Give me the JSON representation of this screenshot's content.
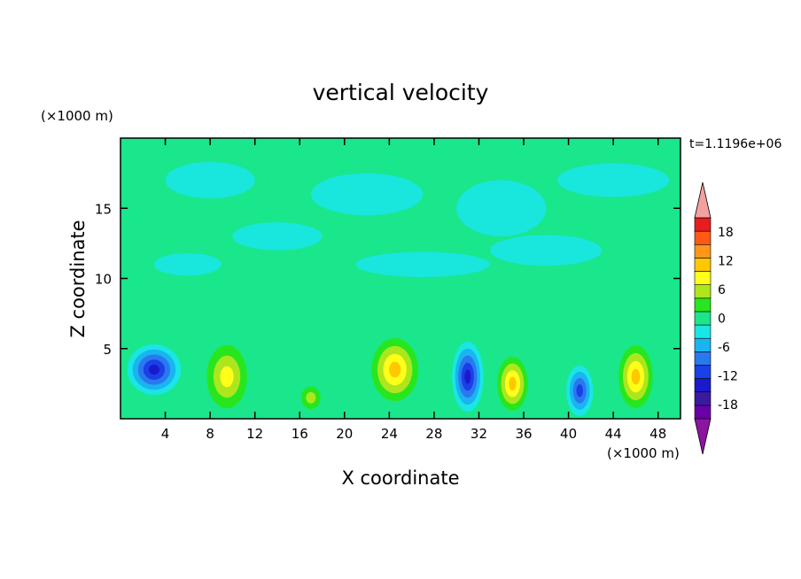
{
  "chart_data": {
    "type": "heatmap",
    "title": "vertical velocity",
    "xlabel": "X coordinate",
    "ylabel": "Z coordinate",
    "x_unit": "(×1000 m)",
    "y_unit": "(×1000 m)",
    "time_label": "t=1.1196e+06",
    "xlim": [
      0,
      50
    ],
    "ylim": [
      0,
      20
    ],
    "x_ticks": [
      4,
      8,
      12,
      16,
      20,
      24,
      28,
      32,
      36,
      40,
      44,
      48
    ],
    "y_ticks": [
      5,
      10,
      15
    ],
    "colorbar": {
      "levels": [
        -21,
        -18,
        -15,
        -12,
        -9,
        -6,
        -3,
        0,
        3,
        6,
        9,
        12,
        15,
        18,
        21
      ],
      "tick_labels": [
        "18",
        "12",
        "6",
        "0",
        "-6",
        "-12",
        "-18"
      ],
      "colors": [
        "#6a00a8",
        "#3c1aa0",
        "#1a1acc",
        "#1a40e6",
        "#2a78f0",
        "#1ab4f0",
        "#1ae6e6",
        "#1ae68c",
        "#28e61e",
        "#aee61e",
        "#ffff1a",
        "#ffc800",
        "#ff961a",
        "#ff5a14",
        "#e61e1e"
      ],
      "extend_low_color": "#8c14a0",
      "extend_high_color": "#f4a0a0"
    },
    "cells": [
      {
        "x": 3.0,
        "z": 3.5,
        "w": -13,
        "rx": 2.4,
        "rz": 1.8
      },
      {
        "x": 9.5,
        "z": 3.0,
        "w": 9,
        "rx": 2.4,
        "rz": 3.0
      },
      {
        "x": 17.0,
        "z": 1.5,
        "w": 6,
        "rx": 1.3,
        "rz": 1.2
      },
      {
        "x": 24.5,
        "z": 3.5,
        "w": 12,
        "rx": 2.6,
        "rz": 2.8
      },
      {
        "x": 31.0,
        "z": 3.0,
        "w": -12,
        "rx": 1.4,
        "rz": 2.5
      },
      {
        "x": 35.0,
        "z": 2.5,
        "w": 12,
        "rx": 1.7,
        "rz": 2.4
      },
      {
        "x": 41.0,
        "z": 2.0,
        "w": -11,
        "rx": 1.2,
        "rz": 1.8
      },
      {
        "x": 46.0,
        "z": 3.0,
        "w": 12,
        "rx": 1.9,
        "rz": 2.8
      }
    ]
  }
}
